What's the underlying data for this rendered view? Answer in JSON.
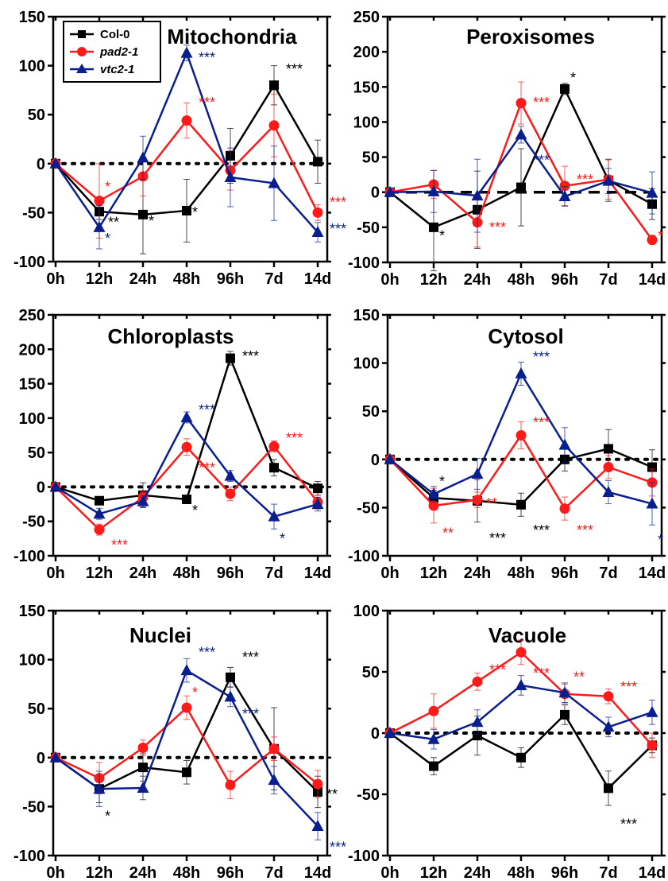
{
  "colors": {
    "Col-0": "#000000",
    "pad2-1": "#ff1a1a",
    "vtc2-1": "#0a1f8f"
  },
  "chart_data": [
    {
      "type": "line",
      "title": "Mitochondria",
      "categories": [
        "0h",
        "12h",
        "24h",
        "48h",
        "96h",
        "7d",
        "14d"
      ],
      "ylim": [
        -100,
        150
      ],
      "yticks": [
        -100,
        -50,
        0,
        50,
        100,
        150
      ],
      "zero_line": "dotted",
      "legend": {
        "placement": "top-left",
        "entries": [
          "Col-0",
          "pad2-1",
          "vtc2-1"
        ]
      },
      "series": [
        {
          "name": "Col-0",
          "marker": "square",
          "values": [
            0,
            -49,
            -52,
            -48,
            8,
            80,
            2
          ],
          "errors": [
            0,
            8,
            40,
            32,
            28,
            20,
            22
          ]
        },
        {
          "name": "pad2-1",
          "marker": "circle",
          "values": [
            0,
            -38,
            -13,
            44,
            -7,
            39,
            -50
          ],
          "errors": [
            0,
            38,
            20,
            18,
            20,
            32,
            8
          ]
        },
        {
          "name": "vtc2-1",
          "marker": "triangle",
          "values": [
            0,
            -65,
            6,
            113,
            -14,
            -20,
            -70
          ],
          "errors": [
            0,
            22,
            22,
            8,
            30,
            38,
            10
          ]
        }
      ],
      "annotations": [
        {
          "text": "*",
          "series": "pad2-1",
          "x": "12h",
          "y": -22
        },
        {
          "text": "**",
          "series": "Col-0",
          "x": "12h",
          "y": -58
        },
        {
          "text": "*",
          "series": "vtc2-1",
          "x": "12h",
          "y": -75
        },
        {
          "text": "*",
          "series": "Col-0",
          "x": "24h",
          "y": -57
        },
        {
          "text": "***",
          "series": "pad2-1",
          "x": "48h",
          "y": 64
        },
        {
          "text": "*",
          "series": "Col-0",
          "x": "48h",
          "y": -48
        },
        {
          "text": "***",
          "series": "vtc2-1",
          "x": "48h",
          "y": 110
        },
        {
          "text": "***",
          "series": "Col-0",
          "x": "7d",
          "y": 98
        },
        {
          "text": "***",
          "series": "pad2-1",
          "x": "14d",
          "y": -38
        },
        {
          "text": "***",
          "series": "vtc2-1",
          "x": "14d",
          "y": -65
        }
      ]
    },
    {
      "type": "line",
      "title": "Peroxisomes",
      "categories": [
        "0h",
        "12h",
        "24h",
        "48h",
        "96h",
        "7d",
        "14d"
      ],
      "ylim": [
        -100,
        250
      ],
      "yticks": [
        -100,
        -50,
        0,
        50,
        100,
        150,
        200,
        250
      ],
      "zero_line": "dashed",
      "series": [
        {
          "name": "Col-0",
          "marker": "square",
          "values": [
            0,
            -50,
            -25,
            7,
            147,
            17,
            -17
          ],
          "errors": [
            0,
            62,
            55,
            55,
            8,
            30,
            22
          ]
        },
        {
          "name": "pad2-1",
          "marker": "circle",
          "values": [
            0,
            11,
            -43,
            127,
            9,
            18,
            -68
          ],
          "errors": [
            0,
            20,
            35,
            30,
            28,
            28,
            6
          ]
        },
        {
          "name": "vtc2-1",
          "marker": "triangle",
          "values": [
            0,
            1,
            -5,
            82,
            -6,
            16,
            -1
          ],
          "errors": [
            0,
            30,
            52,
            12,
            14,
            18,
            30
          ]
        }
      ],
      "annotations": [
        {
          "text": "*",
          "series": "Col-0",
          "x": "12h",
          "y": -60
        },
        {
          "text": "***",
          "series": "pad2-1",
          "x": "24h",
          "y": -48
        },
        {
          "text": "***",
          "series": "pad2-1",
          "x": "48h",
          "y": 130
        },
        {
          "text": "***",
          "series": "vtc2-1",
          "x": "48h",
          "y": 48
        },
        {
          "text": "*",
          "series": "Col-0",
          "x": "96h",
          "y": 165
        },
        {
          "text": "***",
          "series": "pad2-1",
          "x": "96h",
          "y": 20
        },
        {
          "text": "*",
          "series": "pad2-1",
          "x": "14d",
          "y": -60
        }
      ]
    },
    {
      "type": "line",
      "title": "Chloroplasts",
      "categories": [
        "0h",
        "12h",
        "24h",
        "48h",
        "96h",
        "7d",
        "14d"
      ],
      "ylim": [
        -100,
        250
      ],
      "yticks": [
        -100,
        -50,
        0,
        50,
        100,
        150,
        200,
        250
      ],
      "zero_line": "dotted",
      "series": [
        {
          "name": "Col-0",
          "marker": "square",
          "values": [
            0,
            -20,
            -12,
            -18,
            187,
            28,
            -2
          ],
          "errors": [
            0,
            5,
            18,
            6,
            10,
            12,
            10
          ]
        },
        {
          "name": "pad2-1",
          "marker": "circle",
          "values": [
            0,
            -62,
            -15,
            58,
            -10,
            59,
            -22
          ],
          "errors": [
            0,
            8,
            8,
            12,
            10,
            8,
            10
          ]
        },
        {
          "name": "vtc2-1",
          "marker": "triangle",
          "values": [
            0,
            -39,
            -21,
            101,
            16,
            -43,
            -25
          ],
          "errors": [
            0,
            8,
            8,
            8,
            8,
            18,
            10
          ]
        }
      ],
      "annotations": [
        {
          "text": "***",
          "series": "pad2-1",
          "x": "12h",
          "y": -82
        },
        {
          "text": "*",
          "series": "Col-0",
          "x": "48h",
          "y": -32
        },
        {
          "text": "***",
          "series": "vtc2-1",
          "x": "48h",
          "y": 114
        },
        {
          "text": "***",
          "series": "pad2-1",
          "x": "48h",
          "y": 30
        },
        {
          "text": "***",
          "series": "Col-0",
          "x": "96h",
          "y": 192
        },
        {
          "text": "***",
          "series": "pad2-1",
          "x": "7d",
          "y": 73
        },
        {
          "text": "*",
          "series": "vtc2-1",
          "x": "7d",
          "y": -73
        }
      ]
    },
    {
      "type": "line",
      "title": "Cytosol",
      "categories": [
        "0h",
        "12h",
        "24h",
        "48h",
        "96h",
        "7d",
        "14d"
      ],
      "ylim": [
        -100,
        150
      ],
      "yticks": [
        -100,
        -50,
        0,
        50,
        100,
        150
      ],
      "zero_line": "dotted",
      "series": [
        {
          "name": "Col-0",
          "marker": "square",
          "values": [
            0,
            -40,
            -43,
            -47,
            0,
            11,
            -8
          ],
          "errors": [
            0,
            8,
            22,
            12,
            12,
            20,
            18
          ]
        },
        {
          "name": "pad2-1",
          "marker": "circle",
          "values": [
            0,
            -48,
            -42,
            25,
            -51,
            -8,
            -24
          ],
          "errors": [
            0,
            18,
            8,
            14,
            12,
            12,
            14
          ]
        },
        {
          "name": "vtc2-1",
          "marker": "triangle",
          "values": [
            0,
            -36,
            -15,
            89,
            15,
            -34,
            -46
          ],
          "errors": [
            0,
            8,
            16,
            12,
            18,
            12,
            22
          ]
        }
      ],
      "annotations": [
        {
          "text": "*",
          "series": "Col-0",
          "x": "12h",
          "y": -21
        },
        {
          "text": "**",
          "series": "pad2-1",
          "x": "12h",
          "y": -75
        },
        {
          "text": "**",
          "series": "pad2-1",
          "x": "24h",
          "y": -44
        },
        {
          "text": "***",
          "series": "Col-0",
          "x": "24h",
          "y": -80
        },
        {
          "text": "***",
          "series": "vtc2-1",
          "x": "48h",
          "y": 108
        },
        {
          "text": "***",
          "series": "pad2-1",
          "x": "48h",
          "y": 40
        },
        {
          "text": "***",
          "series": "Col-0",
          "x": "48h",
          "y": -72
        },
        {
          "text": "***",
          "series": "pad2-1",
          "x": "96h",
          "y": -72
        },
        {
          "text": "*",
          "series": "vtc2-1",
          "x": "14d",
          "y": -82
        }
      ]
    },
    {
      "type": "line",
      "title": "Nuclei",
      "categories": [
        "0h",
        "12h",
        "24h",
        "48h",
        "96h",
        "7d",
        "14d"
      ],
      "ylim": [
        -100,
        150
      ],
      "yticks": [
        -100,
        -50,
        0,
        50,
        100,
        150
      ],
      "zero_line": "dotted",
      "series": [
        {
          "name": "Col-0",
          "marker": "square",
          "values": [
            0,
            -32,
            -10,
            -15,
            82,
            9,
            -35
          ],
          "errors": [
            0,
            14,
            14,
            12,
            10,
            42,
            16
          ]
        },
        {
          "name": "pad2-1",
          "marker": "circle",
          "values": [
            0,
            -21,
            10,
            51,
            -28,
            9,
            -27
          ],
          "errors": [
            0,
            16,
            8,
            12,
            14,
            12,
            14
          ]
        },
        {
          "name": "vtc2-1",
          "marker": "triangle",
          "values": [
            0,
            -32,
            -31,
            89,
            62,
            -23,
            -70
          ],
          "errors": [
            0,
            18,
            12,
            12,
            10,
            14,
            14
          ]
        }
      ],
      "annotations": [
        {
          "text": "*",
          "series": "Col-0",
          "x": "12h",
          "y": -58
        },
        {
          "text": "***",
          "series": "vtc2-1",
          "x": "48h",
          "y": 109
        },
        {
          "text": "*",
          "series": "pad2-1",
          "x": "48h",
          "y": 68
        },
        {
          "text": "***",
          "series": "Col-0",
          "x": "96h",
          "y": 104
        },
        {
          "text": "***",
          "series": "vtc2-1",
          "x": "96h",
          "y": 46
        },
        {
          "text": "**",
          "series": "Col-0",
          "x": "14d",
          "y": -36
        },
        {
          "text": "***",
          "series": "vtc2-1",
          "x": "14d",
          "y": -90
        }
      ]
    },
    {
      "type": "line",
      "title": "Vacuole",
      "categories": [
        "0h",
        "12h",
        "24h",
        "48h",
        "96h",
        "7d",
        "14d"
      ],
      "ylim": [
        -100,
        100
      ],
      "yticks": [
        -100,
        -50,
        0,
        50,
        100
      ],
      "zero_line": "dotted",
      "series": [
        {
          "name": "Col-0",
          "marker": "square",
          "values": [
            0,
            -27,
            -2,
            -20,
            15,
            -45,
            -10
          ],
          "errors": [
            0,
            7,
            16,
            8,
            8,
            14,
            6
          ]
        },
        {
          "name": "pad2-1",
          "marker": "circle",
          "values": [
            0,
            18,
            42,
            66,
            32,
            30,
            -10
          ],
          "errors": [
            0,
            14,
            7,
            10,
            8,
            6,
            10
          ]
        },
        {
          "name": "vtc2-1",
          "marker": "triangle",
          "values": [
            0,
            -5,
            9,
            39,
            33,
            5,
            17
          ],
          "errors": [
            0,
            8,
            10,
            8,
            8,
            8,
            10
          ]
        }
      ],
      "annotations": [
        {
          "text": "***",
          "series": "pad2-1",
          "x": "24h",
          "y": 53
        },
        {
          "text": "***",
          "series": "pad2-1",
          "x": "48h",
          "y": 50
        },
        {
          "text": "**",
          "series": "pad2-1",
          "x": "96h",
          "y": 47
        },
        {
          "text": "***",
          "series": "pad2-1",
          "x": "7d",
          "y": 39
        },
        {
          "text": "***",
          "series": "Col-0",
          "x": "7d",
          "y": -73
        }
      ]
    }
  ]
}
